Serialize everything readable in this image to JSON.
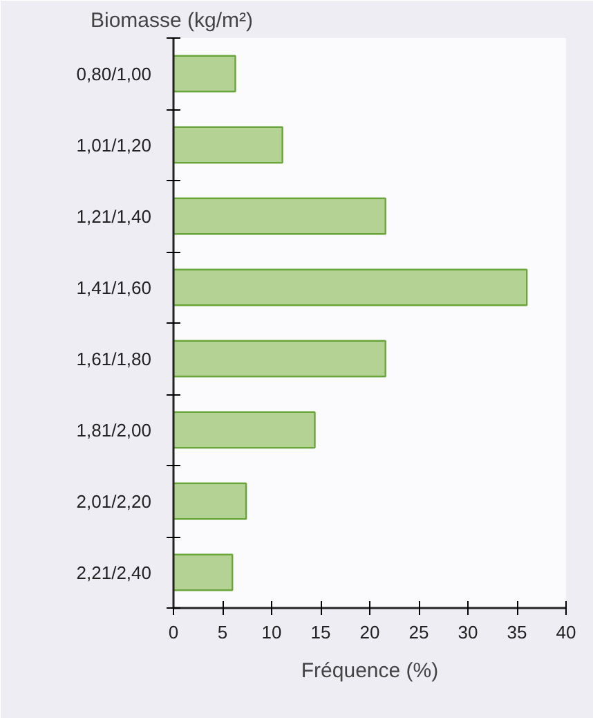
{
  "chart_data": {
    "type": "bar",
    "orientation": "horizontal",
    "ylabel": "Biomasse (kg/m²)",
    "xlabel": "Fréquence (%)",
    "categories": [
      "0,80/1,00",
      "1,01/1,20",
      "1,21/1,40",
      "1,41/1,60",
      "1,61/1,80",
      "1,81/2,00",
      "2,01/2,20",
      "2,21/2,40"
    ],
    "values": [
      6.3,
      11.1,
      21.6,
      36.0,
      21.6,
      14.4,
      7.4,
      6.0
    ],
    "color": "#b5d295",
    "xlim": [
      0,
      40
    ],
    "xticks": [
      0,
      5,
      10,
      15,
      20,
      25,
      30,
      35,
      40
    ],
    "grid": false
  }
}
